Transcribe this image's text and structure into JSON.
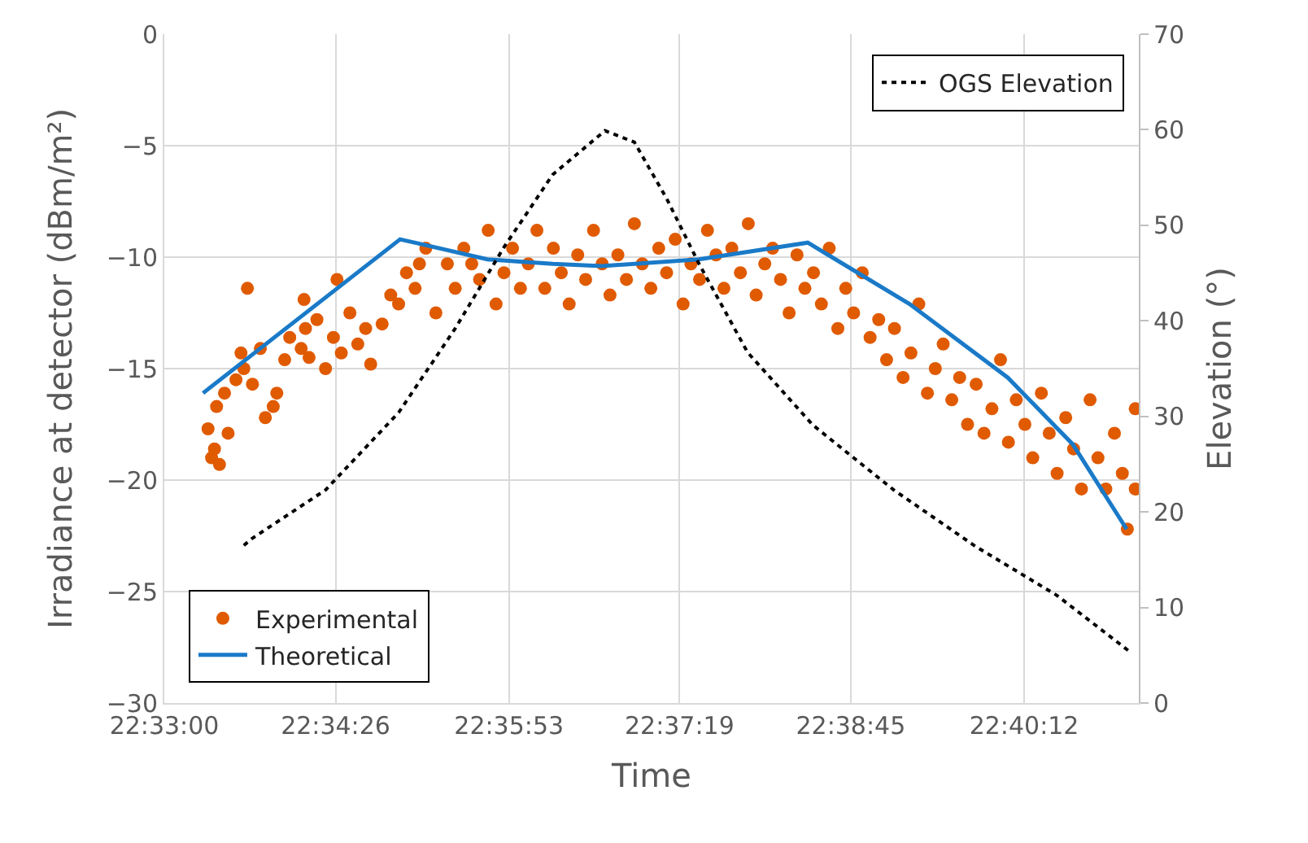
{
  "chart_data": {
    "type": "scatter",
    "xlabel": "Time",
    "ylabel": "Irradiance at detector (dBm/m²)",
    "y2label": "Elevation (°)",
    "xlim": [
      22.55,
      22.686
    ],
    "xticks": [
      {
        "value": 22.55,
        "label": "22:33:00"
      },
      {
        "value": 22.5739,
        "label": "22:34:26"
      },
      {
        "value": 22.5981,
        "label": "22:35:53"
      },
      {
        "value": 22.6219,
        "label": "22:37:19"
      },
      {
        "value": 22.6458,
        "label": "22:38:45"
      },
      {
        "value": 22.67,
        "label": "22:40:12"
      }
    ],
    "ylim": [
      -30,
      0
    ],
    "yticks": [
      -30,
      -25,
      -20,
      -15,
      -10,
      -5,
      0
    ],
    "y2lim": [
      0,
      70
    ],
    "y2ticks": [
      0,
      10,
      20,
      30,
      40,
      50,
      60,
      70
    ],
    "grid": true,
    "legend": "bottom left",
    "series": [
      {
        "name": "Experimental",
        "marker": "circle",
        "color": "#e05a00",
        "x": [
          22.5566,
          22.557,
          22.5561,
          22.5577,
          22.5589,
          22.5573,
          22.5584,
          22.56,
          22.5611,
          22.5623,
          22.5607,
          22.5634,
          22.5641,
          22.5652,
          22.5657,
          22.5668,
          22.5675,
          22.5691,
          22.5697,
          22.5702,
          22.5713,
          22.5725,
          22.5736,
          22.5747,
          22.5759,
          22.577,
          22.5781,
          22.5788,
          22.5804,
          22.5816,
          22.5827,
          22.5838,
          22.585,
          22.5856,
          22.5865,
          22.5879,
          22.5895,
          22.5906,
          22.5918,
          22.5929,
          22.594,
          22.5952,
          22.5963,
          22.5974,
          22.5986,
          22.5997,
          22.6008,
          22.602,
          22.6031,
          22.6043,
          22.6054,
          22.6065,
          22.6077,
          22.6088,
          22.6099,
          22.6111,
          22.6122,
          22.6133,
          22.6145,
          22.6156,
          22.6167,
          22.6179,
          22.619,
          22.6201,
          22.6213,
          22.6224,
          22.6235,
          22.6247,
          22.6258,
          22.627,
          22.6281,
          22.6292,
          22.6304,
          22.6315,
          22.6326,
          22.6338,
          22.6349,
          22.636,
          22.6372,
          22.6383,
          22.6394,
          22.6406,
          22.6417,
          22.6428,
          22.644,
          22.6451,
          22.6462,
          22.6474,
          22.6485,
          22.6497,
          22.6508,
          22.6519,
          22.6531,
          22.6542,
          22.6553,
          22.6565,
          22.6576,
          22.6587,
          22.6599,
          22.661,
          22.6621,
          22.6633,
          22.6644,
          22.6655,
          22.6667,
          22.6678,
          22.6689,
          22.6701,
          22.6712,
          22.6724,
          22.6735,
          22.6746,
          22.6758,
          22.6769,
          22.678,
          22.6792,
          22.6803,
          22.6814,
          22.6826,
          22.6837,
          22.6844,
          22.6855,
          22.6855,
          22.5616,
          22.5695,
          22.5741
        ],
        "values": [
          -19.0,
          -18.6,
          -17.7,
          -19.3,
          -17.9,
          -16.7,
          -16.1,
          -15.5,
          -15.0,
          -15.7,
          -14.3,
          -14.1,
          -17.2,
          -16.7,
          -16.1,
          -14.6,
          -13.6,
          -14.1,
          -13.2,
          -14.5,
          -12.8,
          -15.0,
          -13.6,
          -14.3,
          -12.5,
          -13.9,
          -13.2,
          -14.8,
          -13.0,
          -11.7,
          -12.1,
          -10.7,
          -11.4,
          -10.3,
          -9.6,
          -12.5,
          -10.3,
          -11.4,
          -9.6,
          -10.3,
          -11.0,
          -8.8,
          -12.1,
          -10.7,
          -9.6,
          -11.4,
          -10.3,
          -8.8,
          -11.4,
          -9.6,
          -10.7,
          -12.1,
          -9.9,
          -11.0,
          -8.8,
          -10.3,
          -11.7,
          -9.9,
          -11.0,
          -8.5,
          -10.3,
          -11.4,
          -9.6,
          -10.7,
          -9.2,
          -12.1,
          -10.3,
          -11.0,
          -8.8,
          -9.9,
          -11.4,
          -9.6,
          -10.7,
          -8.5,
          -11.7,
          -10.3,
          -9.6,
          -11.0,
          -12.5,
          -9.9,
          -11.4,
          -10.7,
          -12.1,
          -9.6,
          -13.2,
          -11.4,
          -12.5,
          -10.7,
          -13.6,
          -12.8,
          -14.6,
          -13.2,
          -15.4,
          -14.3,
          -12.1,
          -16.1,
          -15.0,
          -13.9,
          -16.4,
          -15.4,
          -17.5,
          -15.7,
          -17.9,
          -16.8,
          -14.6,
          -18.3,
          -16.4,
          -17.5,
          -19.0,
          -16.1,
          -17.9,
          -19.7,
          -17.2,
          -18.6,
          -20.4,
          -16.4,
          -19.0,
          -20.4,
          -17.9,
          -19.7,
          -22.2,
          -16.8,
          -20.4,
          -11.4,
          -11.9,
          -11.0
        ]
      },
      {
        "name": "Theoretical",
        "type": "line",
        "marker": "none",
        "line_style": "solid",
        "color": "#1a7ac8",
        "x": [
          22.5554,
          22.5829,
          22.5951,
          22.6042,
          22.6111,
          22.6246,
          22.6398,
          22.654,
          22.6677,
          22.6768,
          22.6843
        ],
        "values": [
          -16.1,
          -9.2,
          -10.1,
          -10.3,
          -10.4,
          -10.1,
          -9.35,
          -12.1,
          -15.4,
          -18.4,
          -22.2
        ]
      },
      {
        "name": "OGS Elevation",
        "type": "line",
        "axis": "y2",
        "marker": "none",
        "line_style": "dotted",
        "color": "#000000",
        "x": [
          22.5611,
          22.5622,
          22.5725,
          22.5827,
          22.5906,
          22.5974,
          22.6042,
          22.6115,
          22.6156,
          22.6201,
          22.6246,
          22.6314,
          22.6405,
          22.6518,
          22.6632,
          22.6745,
          22.6847
        ],
        "values": [
          16.5,
          17.2,
          22.3,
          30.4,
          39.2,
          47.7,
          55.3,
          59.9,
          58.7,
          52.8,
          46.0,
          36.7,
          29.1,
          22.3,
          16.4,
          11.3,
          5.4
        ]
      }
    ]
  }
}
